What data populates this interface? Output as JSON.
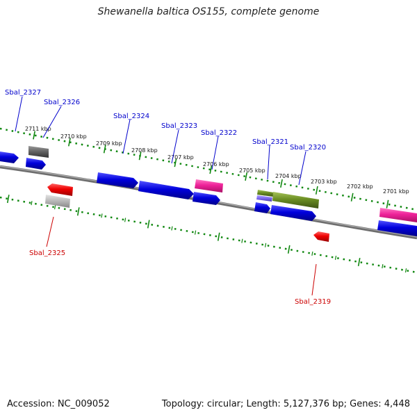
{
  "title": "Shewanella baltica OS155, complete genome",
  "footer": {
    "accession": "Accession: NC_009052",
    "summary": "Topology: circular; Length: 5,127,376 bp; Genes: 4,448"
  },
  "colors": {
    "forward_gene": "#0000dd",
    "reverse_gene": "#ee0000",
    "pseudo_dark": "#666666",
    "pseudo_light": "#bbbbbb",
    "rna_pink": "#ee2299",
    "olive": "#6b8e23",
    "violet": "#7b68ee",
    "tick_green": "#118811",
    "backbone": "#808080",
    "label_forward": "#0000cc",
    "label_reverse": "#cc0000"
  },
  "kbp_ticks": [
    "2711 kbp",
    "2710 kbp",
    "2709 kbp",
    "2708 kbp",
    "2707 kbp",
    "2706 kbp",
    "2705 kbp",
    "2704 kbp",
    "2703 kbp",
    "2702 kbp",
    "2701 kbp"
  ],
  "gene_labels": [
    {
      "text": "Sbal_2327",
      "strand": "forward"
    },
    {
      "text": "Sbal_2326",
      "strand": "forward"
    },
    {
      "text": "Sbal_2324",
      "strand": "forward"
    },
    {
      "text": "Sbal_2323",
      "strand": "forward"
    },
    {
      "text": "Sbal_2322",
      "strand": "forward"
    },
    {
      "text": "Sbal_2321",
      "strand": "forward"
    },
    {
      "text": "Sbal_2320",
      "strand": "forward"
    },
    {
      "text": "Sbal_2325",
      "strand": "reverse"
    },
    {
      "text": "Sbal_2319",
      "strand": "reverse"
    }
  ]
}
